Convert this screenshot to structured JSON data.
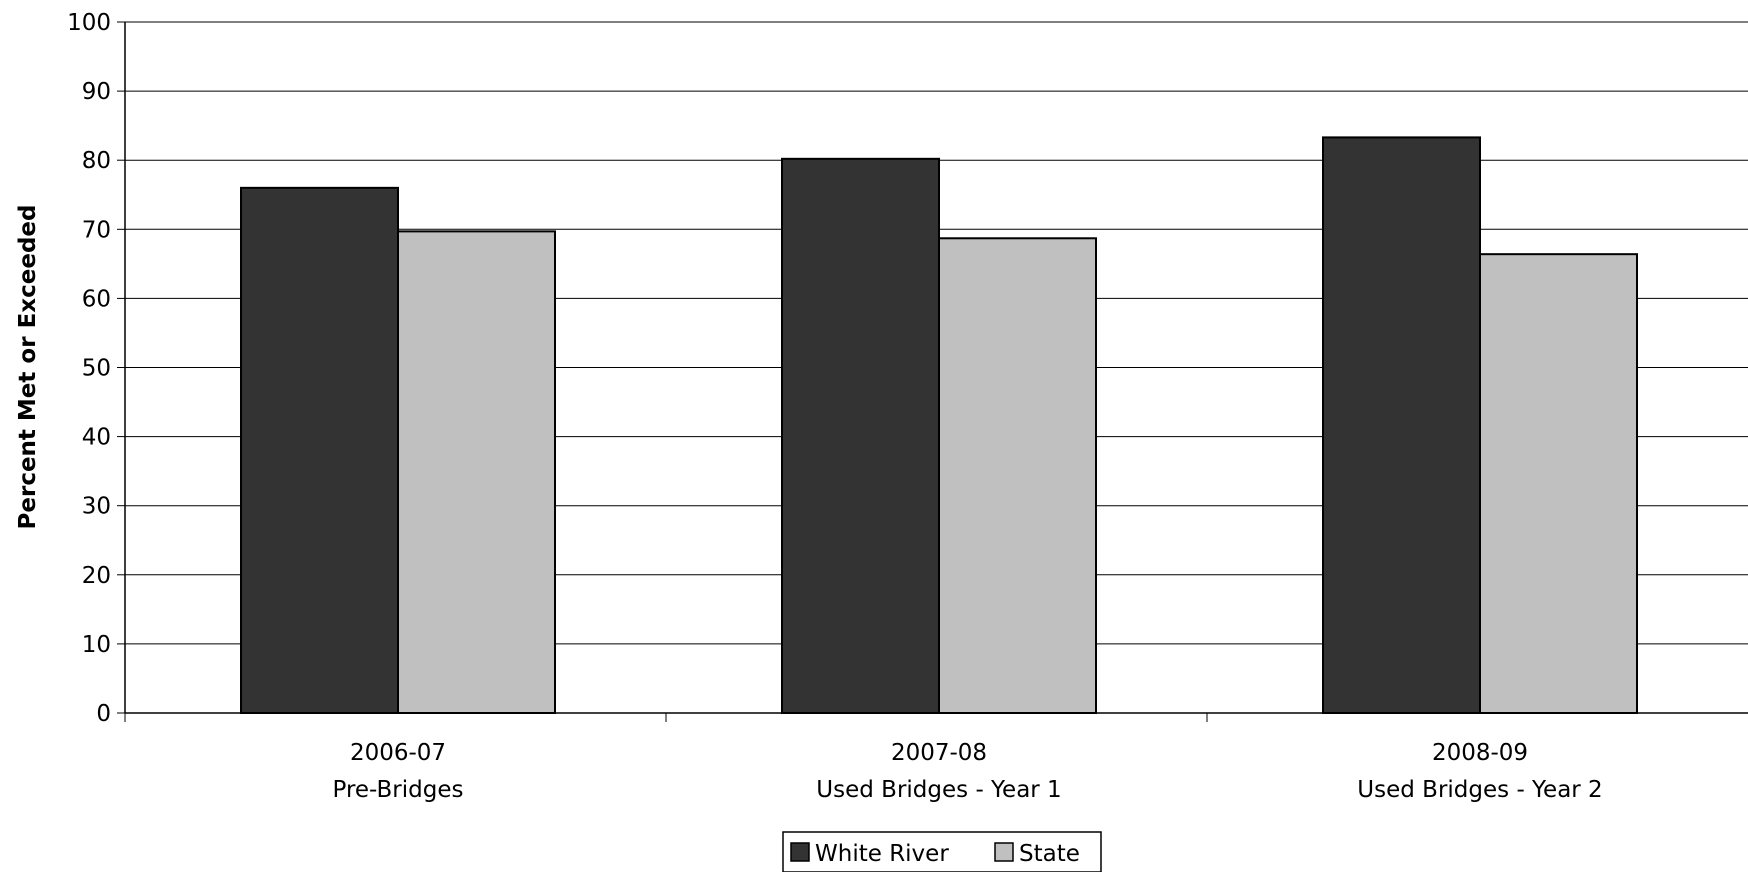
{
  "chart_data": {
    "type": "bar",
    "title": "",
    "xlabel": "",
    "ylabel": "Percent Met or Exceeded",
    "ylim": [
      0,
      100
    ],
    "yticks": [
      0,
      10,
      20,
      30,
      40,
      50,
      60,
      70,
      80,
      90,
      100
    ],
    "grid": true,
    "legend_position": "bottom",
    "categories": [
      {
        "line1": "2006-07",
        "line2": "Pre-Bridges"
      },
      {
        "line1": "2007-08",
        "line2": "Used Bridges - Year 1"
      },
      {
        "line1": "2008-09",
        "line2": "Used Bridges - Year 2"
      }
    ],
    "series": [
      {
        "name": "White River",
        "color": "#333333",
        "values": [
          76.0,
          80.2,
          83.3
        ]
      },
      {
        "name": "State",
        "color": "#c0c0c0",
        "values": [
          69.7,
          68.7,
          66.4
        ]
      }
    ]
  }
}
